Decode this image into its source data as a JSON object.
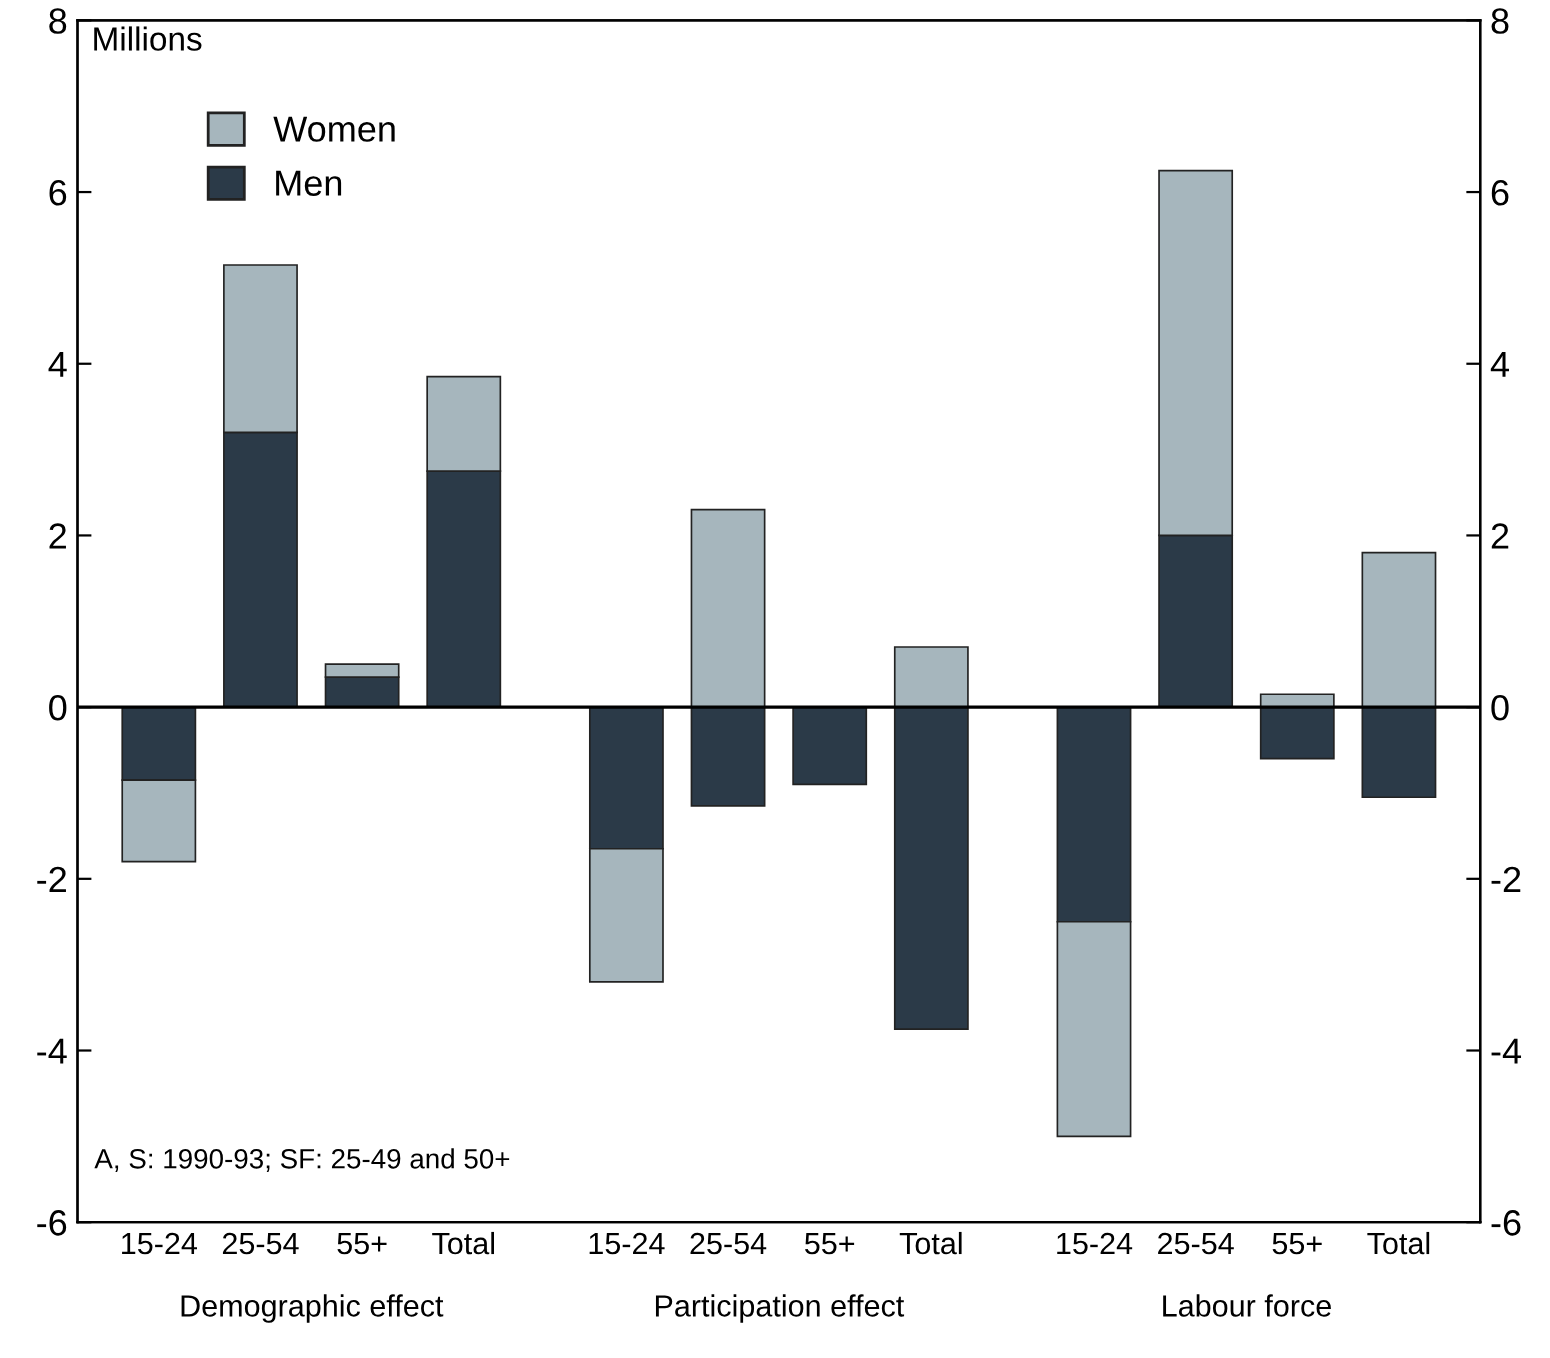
{
  "chart_data": {
    "type": "bar",
    "stacked": true,
    "ylabel": "Millions",
    "categories": [
      "15-24",
      "25-54",
      "55+",
      "Total",
      "15-24",
      "25-54",
      "55+",
      "Total",
      "15-24",
      "25-54",
      "55+",
      "Total"
    ],
    "series": [
      {
        "name": "Men",
        "color": "#2b3a48",
        "values": [
          -0.85,
          3.2,
          0.35,
          2.75,
          -1.65,
          -1.15,
          -0.9,
          -3.75,
          -2.5,
          2.0,
          -0.6,
          -1.05
        ]
      },
      {
        "name": "Women",
        "color": "#a6b6bd",
        "values": [
          -0.95,
          1.95,
          0.15,
          1.1,
          -1.55,
          2.3,
          null,
          0.7,
          -2.5,
          4.25,
          0.15,
          1.8
        ]
      }
    ],
    "ylim": [
      -6,
      8
    ],
    "yticks": [
      {
        "value": -6,
        "label": "-6"
      },
      {
        "value": -4,
        "label": "-4"
      },
      {
        "value": -2,
        "label": "-2"
      },
      0,
      2,
      4,
      6,
      8
    ],
    "y2lim": [
      -6,
      8
    ],
    "y2ticks": [
      {
        "value": -6,
        "label": "-6"
      },
      {
        "value": -4,
        "label": "-4"
      },
      {
        "value": -2,
        "label": "-2"
      },
      0,
      2,
      4,
      6,
      8
    ],
    "ref_lines": [
      {
        "axis": "y",
        "value": 0,
        "label": null,
        "color": "#000000"
      }
    ],
    "legend": "top left",
    "grid": false,
    "annotations": [
      "Demographic effect",
      "Participation effect",
      "Labour force",
      "A, S: 1990-93; SF: 25-49 and 50+"
    ]
  }
}
